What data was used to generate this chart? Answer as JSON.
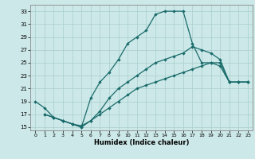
{
  "xlabel": "Humidex (Indice chaleur)",
  "bg_color": "#cce8e8",
  "grid_color": "#aacece",
  "line_color": "#1a6b6b",
  "xlim": [
    -0.5,
    23.5
  ],
  "ylim": [
    14.5,
    34
  ],
  "xticks": [
    0,
    1,
    2,
    3,
    4,
    5,
    6,
    7,
    8,
    9,
    10,
    11,
    12,
    13,
    14,
    15,
    16,
    17,
    18,
    19,
    20,
    21,
    22,
    23
  ],
  "yticks": [
    15,
    17,
    19,
    21,
    23,
    25,
    27,
    29,
    31,
    33
  ],
  "line1_x": [
    0,
    1,
    2,
    3,
    4,
    5,
    6,
    7,
    8,
    9,
    10,
    11,
    12,
    13,
    14,
    15,
    16,
    17,
    18,
    19,
    20,
    21,
    22,
    23
  ],
  "line1_y": [
    19,
    18,
    16.5,
    16,
    15.5,
    15,
    19.5,
    22,
    23.5,
    25.5,
    28,
    29,
    30,
    32.5,
    33,
    33,
    33,
    28,
    25,
    25,
    24.5,
    22,
    22,
    22
  ],
  "line2_x": [
    1,
    2,
    3,
    4,
    5,
    6,
    7,
    8,
    9,
    10,
    11,
    12,
    13,
    14,
    15,
    16,
    17,
    18,
    19,
    20,
    21,
    22,
    23
  ],
  "line2_y": [
    17,
    16.5,
    16,
    15.5,
    15.2,
    16,
    17.5,
    19.5,
    21,
    22,
    23,
    24,
    25,
    25.5,
    26,
    26.5,
    27.5,
    27,
    26.5,
    25.5,
    22,
    22,
    22
  ],
  "line3_x": [
    1,
    2,
    3,
    4,
    5,
    6,
    7,
    8,
    9,
    10,
    11,
    12,
    13,
    14,
    15,
    16,
    17,
    18,
    19,
    20,
    21,
    22,
    23
  ],
  "line3_y": [
    17,
    16.5,
    16,
    15.5,
    15,
    16,
    17,
    18,
    19,
    20,
    21,
    21.5,
    22,
    22.5,
    23,
    23.5,
    24,
    24.5,
    25,
    25,
    22,
    22,
    22
  ]
}
